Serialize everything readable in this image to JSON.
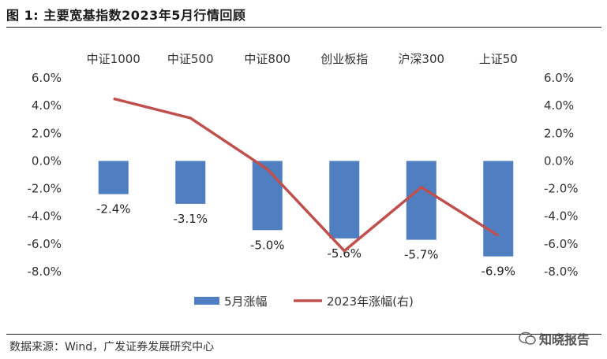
{
  "header": {
    "title": "图 1:  主要宽基指数2023年5月行情回顾"
  },
  "footer": {
    "source": "数据来源：Wind，广发证券发展研究中心",
    "watermark": "知晓报告"
  },
  "colors": {
    "bar": "#4F7FC0",
    "line": "#C0504D"
  },
  "chart_data": {
    "type": "bar+line",
    "categories": [
      "中证1000",
      "中证500",
      "中证800",
      "创业板指",
      "沪深300",
      "上证50"
    ],
    "series": [
      {
        "name": "5月涨幅",
        "kind": "bar",
        "axis": "left",
        "values": [
          -2.4,
          -3.1,
          -5.0,
          -5.6,
          -5.7,
          -6.9
        ],
        "labels": [
          "-2.4%",
          "-3.1%",
          "-5.0%",
          "-5.6%",
          "-5.7%",
          "-6.9%"
        ]
      },
      {
        "name": "2023年涨幅(右)",
        "kind": "line",
        "axis": "right",
        "values": [
          4.5,
          3.1,
          -0.6,
          -6.5,
          -1.9,
          -5.4
        ]
      }
    ],
    "ylim": [
      -8,
      6
    ],
    "y_ticks": [
      "6.0%",
      "4.0%",
      "2.0%",
      "0.0%",
      "-2.0%",
      "-4.0%",
      "-6.0%",
      "-8.0%"
    ],
    "y_tick_values": [
      6,
      4,
      2,
      0,
      -2,
      -4,
      -6,
      -8
    ],
    "legend_position": "bottom-center",
    "grid": false
  }
}
